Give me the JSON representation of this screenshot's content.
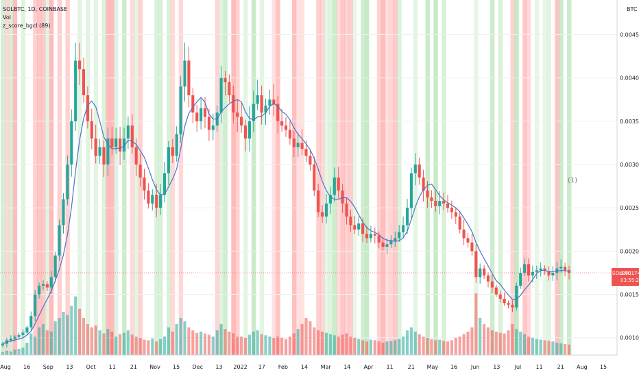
{
  "header": {
    "symbol_line": "SOLBTC, 1D, COINBASE",
    "volume_label": "Vol",
    "indicator_label": "z_score_bgcl (89)"
  },
  "price_axis": {
    "currency": "BTC",
    "ticks": [
      "0.00450000",
      "0.00400000",
      "0.00350000",
      "0.00300000",
      "0.00250000",
      "0.00200000",
      "0.00150000",
      "0.00100000"
    ],
    "last_price_label": "0.00174960",
    "countdown_label": "03:55:25",
    "symbol_tag": "SOLBTC"
  },
  "annotation": "(1)",
  "colors": {
    "up": "#26a69a",
    "down": "#ef5350",
    "ma": "#4f72c9",
    "bg_red": "#ff8a8a",
    "bg_green": "#8cd48c",
    "price_line": "#ef5350"
  },
  "chart_data": {
    "type": "candlestick",
    "x_ticks": [
      "Aug",
      "16",
      "Sep",
      "13",
      "Oct",
      "11",
      "21",
      "Nov",
      "15",
      "Dec",
      "13",
      "2022",
      "17",
      "Feb",
      "14",
      "Mar",
      "14",
      "Apr",
      "11",
      "21",
      "May",
      "16",
      "Jun",
      "13",
      "Jul",
      "11",
      "21",
      "Aug",
      "15"
    ],
    "y_range": [
      0.0008,
      0.0049
    ],
    "last_price": 0.0017496,
    "closes": [
      0.00093,
      0.00097,
      0.00099,
      0.00101,
      0.00103,
      0.00106,
      0.00112,
      0.00125,
      0.0015,
      0.0016,
      0.00162,
      0.00158,
      0.0017,
      0.00195,
      0.0023,
      0.0026,
      0.003,
      0.0035,
      0.0042,
      0.0041,
      0.0038,
      0.0035,
      0.0033,
      0.0031,
      0.0032,
      0.003,
      0.0033,
      0.0032,
      0.0033,
      0.00315,
      0.0033,
      0.00345,
      0.0032,
      0.003,
      0.00285,
      0.0027,
      0.00255,
      0.00265,
      0.0025,
      0.00265,
      0.0029,
      0.0032,
      0.0031,
      0.00335,
      0.0039,
      0.0042,
      0.0038,
      0.0036,
      0.0035,
      0.00365,
      0.00355,
      0.0034,
      0.00345,
      0.0036,
      0.004,
      0.00395,
      0.0038,
      0.0036,
      0.00355,
      0.00345,
      0.0033,
      0.0035,
      0.0037,
      0.0038,
      0.0036,
      0.00368,
      0.00375,
      0.0037,
      0.0035,
      0.00345,
      0.0034,
      0.0033,
      0.0032,
      0.00325,
      0.00318,
      0.0031,
      0.003,
      0.0027,
      0.00245,
      0.0024,
      0.00255,
      0.00265,
      0.00285,
      0.0027,
      0.00255,
      0.0024,
      0.0023,
      0.00225,
      0.00232,
      0.0022,
      0.00215,
      0.0022,
      0.00218,
      0.0021,
      0.00205,
      0.00208,
      0.00212,
      0.00215,
      0.00222,
      0.0023,
      0.0025,
      0.0029,
      0.003,
      0.00285,
      0.0027,
      0.00262,
      0.00258,
      0.00252,
      0.00258,
      0.00255,
      0.0025,
      0.00245,
      0.0024,
      0.00225,
      0.00215,
      0.0021,
      0.002,
      0.0017,
      0.0018,
      0.00172,
      0.00165,
      0.00158,
      0.0015,
      0.00145,
      0.0014,
      0.00138,
      0.00135,
      0.0016,
      0.00175,
      0.00185,
      0.00172,
      0.00176,
      0.00178,
      0.0018,
      0.00177,
      0.00172,
      0.00175,
      0.0018,
      0.00182,
      0.00178,
      0.00175
    ],
    "volume_range": [
      0,
      1
    ],
    "volumes": [
      0.05,
      0.07,
      0.06,
      0.09,
      0.1,
      0.12,
      0.2,
      0.35,
      0.3,
      0.45,
      0.5,
      0.4,
      0.38,
      0.55,
      0.6,
      0.7,
      0.65,
      0.8,
      0.95,
      0.75,
      0.6,
      0.5,
      0.45,
      0.48,
      0.4,
      0.35,
      0.42,
      0.38,
      0.3,
      0.34,
      0.36,
      0.4,
      0.33,
      0.3,
      0.28,
      0.25,
      0.24,
      0.27,
      0.22,
      0.26,
      0.3,
      0.45,
      0.38,
      0.5,
      0.6,
      0.55,
      0.45,
      0.4,
      0.36,
      0.38,
      0.35,
      0.33,
      0.3,
      0.4,
      0.5,
      0.42,
      0.38,
      0.35,
      0.3,
      0.3,
      0.28,
      0.33,
      0.38,
      0.4,
      0.34,
      0.32,
      0.3,
      0.28,
      0.3,
      0.28,
      0.26,
      0.3,
      0.35,
      0.42,
      0.5,
      0.6,
      0.55,
      0.45,
      0.4,
      0.38,
      0.36,
      0.34,
      0.32,
      0.3,
      0.33,
      0.35,
      0.3,
      0.28,
      0.26,
      0.24,
      0.22,
      0.25,
      0.24,
      0.22,
      0.2,
      0.22,
      0.23,
      0.24,
      0.26,
      0.3,
      0.4,
      0.45,
      0.38,
      0.34,
      0.3,
      0.28,
      0.26,
      0.24,
      0.25,
      0.23,
      0.22,
      0.24,
      0.28,
      0.3,
      0.34,
      0.38,
      0.45,
      1.0,
      0.6,
      0.5,
      0.45,
      0.4,
      0.38,
      0.36,
      0.35,
      0.4,
      0.5,
      0.42,
      0.38,
      0.34,
      0.3,
      0.28,
      0.26,
      0.25,
      0.24,
      0.23,
      0.22,
      0.2,
      0.19,
      0.18,
      0.17
    ],
    "background_bands": "alternating red/green shading by z-score"
  }
}
